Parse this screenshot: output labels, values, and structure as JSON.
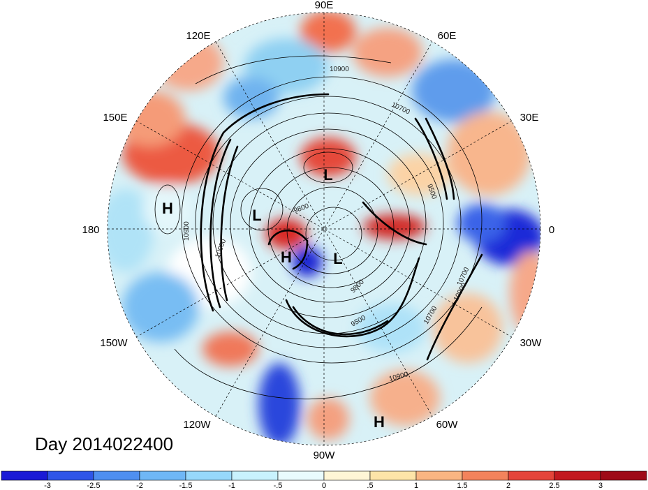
{
  "title_text": "Day 2014022400",
  "longitude_labels": {
    "lon_90e": "90E",
    "lon_120e": "120E",
    "lon_60e": "60E",
    "lon_150e": "150E",
    "lon_30e": "30E",
    "lon_180": "180",
    "lon_0": "0",
    "lon_150w": "150W",
    "lon_30w": "30W",
    "lon_120w": "120W",
    "lon_60w": "60W",
    "lon_90w": "90W"
  },
  "pressure_centers": [
    {
      "name": "high-east-pacific",
      "symbol": "H"
    },
    {
      "name": "low-north-siberia",
      "symbol": "L"
    },
    {
      "name": "low-arctic-pacific-side",
      "symbol": "L"
    },
    {
      "name": "high-canada",
      "symbol": "H"
    },
    {
      "name": "low-canada",
      "symbol": "L"
    },
    {
      "name": "high-subtropical-atlantic",
      "symbol": "H"
    }
  ],
  "contour_labels": [
    "10900",
    "10700",
    "9500",
    "10900",
    "9800",
    "10700",
    "10900",
    "9500",
    "10900",
    "10900",
    "9800",
    "10700"
  ],
  "colorbar": {
    "colors": [
      "#1a1ad6",
      "#2f55e8",
      "#4f8ff0",
      "#6fb7f6",
      "#97d8fb",
      "#c8f2fd",
      "#e9fbfd",
      "#fff6d6",
      "#fde4a8",
      "#f9b582",
      "#f3835c",
      "#e4443a",
      "#c2191f",
      "#9e0a17"
    ],
    "tick_labels": [
      "-3",
      "-2.5",
      "-2",
      "-1.5",
      "-1",
      "-.5",
      "0",
      ".5",
      "1",
      "1.5",
      "2",
      "2.5",
      "3"
    ]
  }
}
